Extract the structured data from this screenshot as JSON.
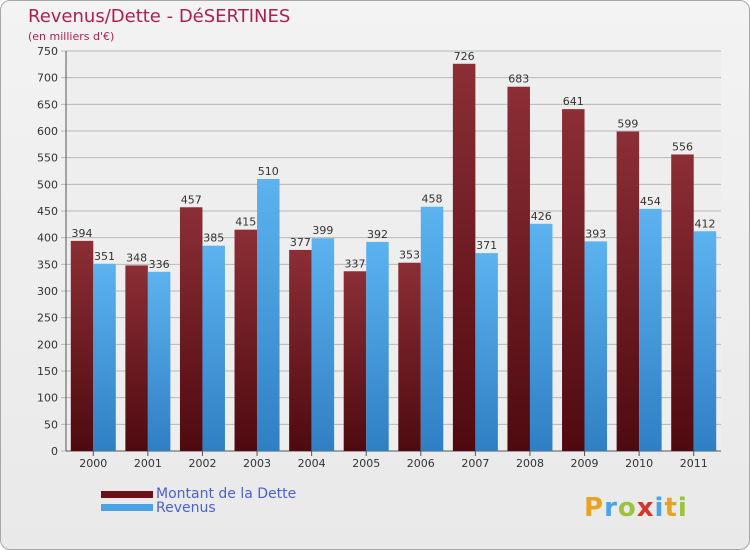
{
  "title": "Revenus/Dette - DéSERTINES",
  "subtitle": "(en milliers d'€)",
  "colors": {
    "dette": "#7a1f27",
    "revenus": "#4aa3e6",
    "title": "#b0204a",
    "legend": "#4b5fd8"
  },
  "chart_data": {
    "type": "bar",
    "title": "Revenus/Dette - DéSERTINES",
    "ylabel": "(en milliers d'€)",
    "xlabel": "",
    "categories": [
      "2000",
      "2001",
      "2002",
      "2003",
      "2004",
      "2005",
      "2006",
      "2007",
      "2008",
      "2009",
      "2010",
      "2011"
    ],
    "series": [
      {
        "name": "Montant de la Dette",
        "values": [
          394,
          348,
          457,
          415,
          377,
          337,
          353,
          726,
          683,
          641,
          599,
          556
        ]
      },
      {
        "name": "Revenus",
        "values": [
          351,
          336,
          385,
          510,
          399,
          392,
          458,
          371,
          426,
          393,
          454,
          412
        ]
      }
    ],
    "ylim": [
      0,
      750
    ],
    "yticks": [
      0,
      50,
      100,
      150,
      200,
      250,
      300,
      350,
      400,
      450,
      500,
      550,
      600,
      650,
      700,
      750
    ],
    "grid": true,
    "legend": "bottom-left"
  },
  "legend": [
    {
      "label": "Montant de la Dette"
    },
    {
      "label": "Revenus"
    }
  ],
  "logo": {
    "text": "Proxiti"
  }
}
